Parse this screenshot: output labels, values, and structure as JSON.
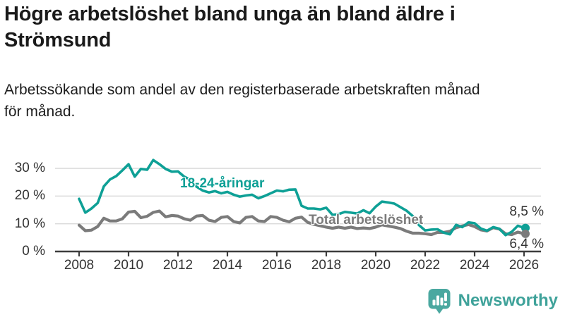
{
  "header": {
    "title_lines": [
      "Högre arbetslöshet bland unga än bland äldre i",
      "Strömsund"
    ],
    "subtitle_lines": [
      "Arbetssökande som andel av den registerbaserade arbetskraften månad",
      "för månad."
    ]
  },
  "footer": {
    "brand": "Newsworthy",
    "brand_color": "#3fa29a",
    "logo_icon": "bar-chart-speech-bubble-icon"
  },
  "chart_data": {
    "type": "line",
    "unit": "%",
    "x_unit": "year (monthly series, decimal years)",
    "grid": "horizontal-only",
    "legend_position": "inline-labels-on-lines",
    "xlim": [
      2007.9,
      2026.7
    ],
    "ylim": [
      0,
      36
    ],
    "y_ticks": [
      {
        "v": 0,
        "label": "0 %"
      },
      {
        "v": 10,
        "label": "10 %"
      },
      {
        "v": 20,
        "label": "20 %"
      },
      {
        "v": 30,
        "label": "30 %"
      }
    ],
    "x_ticks": [
      {
        "v": 2008,
        "label": "2008"
      },
      {
        "v": 2010,
        "label": "2010"
      },
      {
        "v": 2012,
        "label": "2012"
      },
      {
        "v": 2014,
        "label": "2014"
      },
      {
        "v": 2016,
        "label": "2016"
      },
      {
        "v": 2018,
        "label": "2018"
      },
      {
        "v": 2020,
        "label": "2020"
      },
      {
        "v": 2022,
        "label": "2022"
      },
      {
        "v": 2024,
        "label": "2024"
      },
      {
        "v": 2026,
        "label": "2026"
      }
    ],
    "x": [
      2008,
      2008.25,
      2008.5,
      2008.75,
      2009,
      2009.25,
      2009.5,
      2009.75,
      2010,
      2010.25,
      2010.5,
      2010.75,
      2011,
      2011.25,
      2011.5,
      2011.75,
      2012,
      2012.25,
      2012.5,
      2012.75,
      2013,
      2013.25,
      2013.5,
      2013.75,
      2014,
      2014.25,
      2014.5,
      2014.75,
      2015,
      2015.25,
      2015.5,
      2015.75,
      2016,
      2016.25,
      2016.5,
      2016.75,
      2017,
      2017.25,
      2017.5,
      2017.75,
      2018,
      2018.25,
      2018.5,
      2018.75,
      2019,
      2019.25,
      2019.5,
      2019.75,
      2020,
      2020.25,
      2020.5,
      2020.75,
      2021,
      2021.25,
      2021.5,
      2021.75,
      2022,
      2022.25,
      2022.5,
      2022.75,
      2023,
      2023.25,
      2023.5,
      2023.75,
      2024,
      2024.25,
      2024.5,
      2024.75,
      2025,
      2025.25,
      2025.5,
      2025.75,
      2026
    ],
    "series": [
      {
        "name": "18-24-åringar",
        "color": "#0ea096",
        "end_label": "8,5 %",
        "end_value": 8.5,
        "values": [
          19.0,
          14.0,
          15.5,
          17.5,
          23.5,
          26.0,
          27.2,
          29.3,
          31.5,
          27.0,
          29.8,
          29.5,
          33.0,
          31.5,
          29.8,
          28.8,
          28.9,
          27.0,
          25.9,
          23.4,
          22.0,
          21.3,
          21.8,
          21.0,
          21.5,
          20.5,
          19.8,
          20.2,
          20.5,
          19.2,
          20.0,
          21.0,
          22.0,
          21.7,
          22.3,
          22.4,
          16.5,
          15.5,
          15.5,
          15.2,
          15.8,
          13.2,
          13.5,
          14.3,
          14.0,
          13.7,
          14.9,
          13.8,
          16.2,
          18.0,
          17.7,
          17.3,
          16.0,
          14.7,
          12.8,
          9.5,
          7.6,
          7.9,
          8.0,
          6.8,
          6.2,
          9.6,
          8.8,
          10.5,
          10.2,
          8.3,
          7.5,
          8.8,
          8.2,
          5.9,
          7.1,
          9.3,
          8.5
        ]
      },
      {
        "name": "Total arbetslöshet",
        "color": "#7b7b7b",
        "end_label": "6,4 %",
        "end_value": 6.4,
        "values": [
          9.5,
          7.5,
          7.7,
          9.0,
          12.0,
          11.0,
          11.0,
          11.8,
          14.2,
          14.5,
          12.2,
          12.7,
          14.1,
          14.6,
          12.5,
          13.0,
          12.8,
          11.8,
          11.3,
          12.8,
          13.0,
          11.3,
          10.8,
          12.3,
          12.6,
          10.8,
          10.3,
          12.3,
          12.6,
          11.0,
          10.8,
          12.6,
          12.3,
          11.3,
          10.7,
          12.0,
          12.4,
          10.5,
          9.8,
          9.3,
          8.8,
          8.4,
          8.8,
          8.4,
          8.8,
          8.3,
          8.5,
          8.3,
          8.8,
          9.6,
          9.2,
          8.8,
          8.3,
          7.3,
          6.6,
          6.6,
          6.4,
          6.1,
          6.9,
          6.9,
          7.3,
          8.6,
          9.2,
          9.7,
          9.0,
          7.8,
          7.4,
          8.6,
          8.1,
          6.4,
          6.1,
          7.0,
          6.4
        ]
      }
    ]
  }
}
